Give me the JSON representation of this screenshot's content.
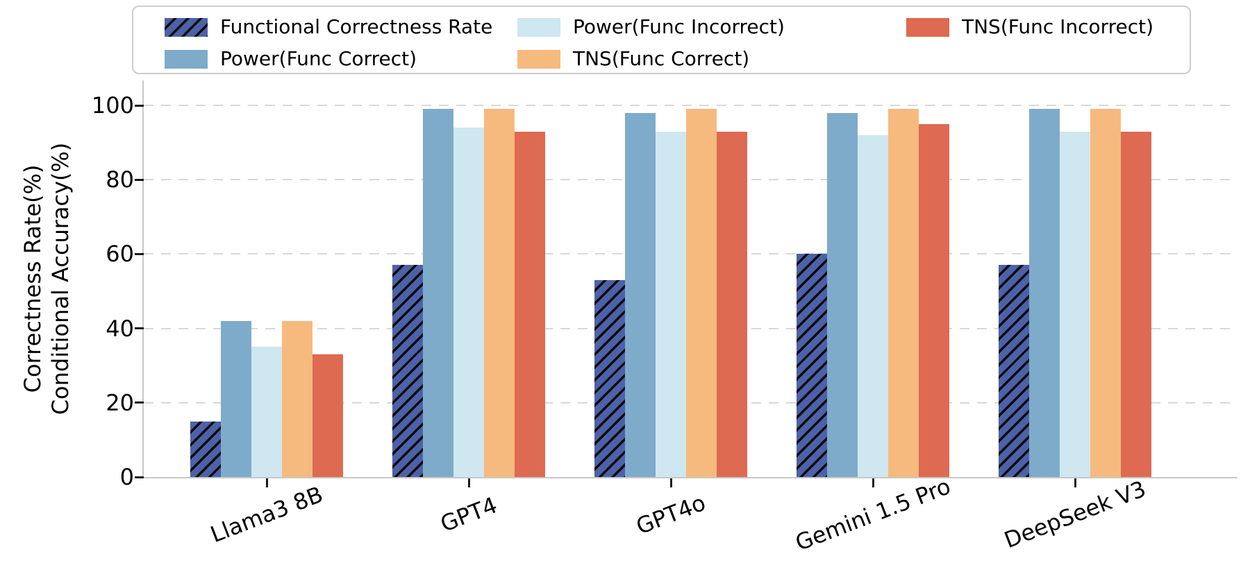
{
  "chart_data": {
    "type": "bar",
    "title": "",
    "categories": [
      "Llama3 8B",
      "GPT4",
      "GPT4o",
      "Gemini 1.5 Pro",
      "DeepSeek V3"
    ],
    "series": [
      {
        "name": "Functional Correctness Rate",
        "color": "#4d62a6",
        "hatch": "//",
        "values": [
          15,
          57,
          53,
          60,
          57
        ]
      },
      {
        "name": "Power(Func Correct)",
        "color": "#7eabca",
        "hatch": null,
        "values": [
          42,
          99,
          98,
          98,
          99
        ]
      },
      {
        "name": "Power(Func Incorrect)",
        "color": "#cfe7f0",
        "hatch": null,
        "values": [
          35,
          94,
          93,
          92,
          93
        ]
      },
      {
        "name": "TNS(Func Correct)",
        "color": "#f6ba7e",
        "hatch": null,
        "values": [
          42,
          99,
          99,
          99,
          99
        ]
      },
      {
        "name": "TNS(Func Incorrect)",
        "color": "#de6a52",
        "hatch": null,
        "values": [
          33,
          93,
          93,
          95,
          93
        ]
      }
    ],
    "ylabel_lines": [
      "Correctness Rate(%)",
      "Conditional Accuracy(%)"
    ],
    "yticks": [
      0,
      20,
      40,
      60,
      80,
      100
    ],
    "ylim": [
      0,
      107
    ],
    "grid": "horizontal-dashed",
    "legend_position": "top",
    "legend_columns": 3
  },
  "colors": {
    "background": "#ffffff",
    "hatch_line": "#0b0b15",
    "gridline": "#d8d8d8",
    "spine": "#c8c8c8",
    "tick": "#1a1a1a",
    "text": "#000000",
    "legend_border": "#cccccc"
  }
}
